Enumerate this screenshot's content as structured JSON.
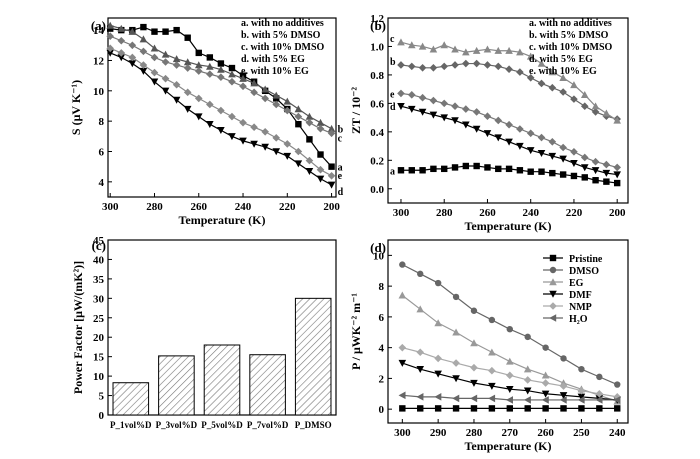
{
  "chart_data": [
    {
      "panel": "(a)",
      "type": "line",
      "xlabel": "Temperature (K)",
      "ylabel": "S (μV K⁻¹)",
      "xlim": [
        301,
        198
      ],
      "ylim": [
        3,
        14.8
      ],
      "xticks": [
        300,
        280,
        260,
        240,
        220,
        200
      ],
      "yticks": [
        4,
        6,
        8,
        10,
        12,
        14
      ],
      "legend": [
        "a. with no additives",
        "b. with 5% DMSO",
        "c. with 10% DMSO",
        "d. with 5% EG",
        "e. with 10% EG"
      ],
      "legend_position": "top-right",
      "series": [
        {
          "label": "a",
          "marker": "square",
          "color": "#000000",
          "x": [
            300,
            295,
            290,
            285,
            280,
            275,
            270,
            265,
            260,
            255,
            250,
            245,
            240,
            235,
            230,
            225,
            220,
            215,
            210,
            205,
            200
          ],
          "y": [
            14.1,
            14.0,
            14.0,
            14.2,
            13.9,
            13.9,
            14.0,
            13.5,
            12.5,
            12.2,
            11.8,
            11.5,
            11.0,
            10.6,
            10.0,
            9.5,
            8.8,
            7.8,
            6.8,
            5.8,
            5.0
          ]
        },
        {
          "label": "b",
          "marker": "triangle-up",
          "color": "#555555",
          "x": [
            300,
            295,
            290,
            285,
            280,
            275,
            270,
            265,
            260,
            255,
            250,
            245,
            240,
            235,
            230,
            225,
            220,
            215,
            210,
            205,
            200
          ],
          "y": [
            14.3,
            14.1,
            13.9,
            13.4,
            12.8,
            12.4,
            12.1,
            11.9,
            11.7,
            11.6,
            11.4,
            11.1,
            10.8,
            10.5,
            10.1,
            9.7,
            9.3,
            8.8,
            8.3,
            7.9,
            7.5
          ]
        },
        {
          "label": "c",
          "marker": "diamond",
          "color": "#777777",
          "x": [
            300,
            295,
            290,
            285,
            280,
            275,
            270,
            265,
            260,
            255,
            250,
            245,
            240,
            235,
            230,
            225,
            220,
            215,
            210,
            205,
            200
          ],
          "y": [
            13.6,
            13.3,
            13.0,
            12.6,
            12.2,
            11.9,
            11.7,
            11.5,
            11.3,
            11.1,
            10.9,
            10.6,
            10.3,
            9.9,
            9.5,
            9.1,
            8.7,
            8.3,
            7.9,
            7.5,
            7.2
          ]
        },
        {
          "label": "d",
          "marker": "triangle-down",
          "color": "#000000",
          "x": [
            300,
            295,
            290,
            285,
            280,
            275,
            270,
            265,
            260,
            255,
            250,
            245,
            240,
            235,
            230,
            225,
            220,
            215,
            210,
            205,
            200
          ],
          "y": [
            12.5,
            12.2,
            11.8,
            11.3,
            10.6,
            10.0,
            9.4,
            8.8,
            8.3,
            7.8,
            7.4,
            7.0,
            6.7,
            6.5,
            6.3,
            6.0,
            5.7,
            5.2,
            4.7,
            4.2,
            3.8
          ]
        },
        {
          "label": "e",
          "marker": "diamond",
          "color": "#888888",
          "x": [
            300,
            295,
            290,
            285,
            280,
            275,
            270,
            265,
            260,
            255,
            250,
            245,
            240,
            235,
            230,
            225,
            220,
            215,
            210,
            205,
            200
          ],
          "y": [
            12.8,
            12.5,
            12.2,
            11.7,
            11.2,
            10.8,
            10.4,
            9.9,
            9.5,
            9.1,
            8.7,
            8.3,
            7.9,
            7.6,
            7.3,
            6.9,
            6.5,
            6.0,
            5.4,
            4.8,
            4.4
          ]
        }
      ]
    },
    {
      "panel": "(b)",
      "type": "line",
      "xlabel": "Temperature (K)",
      "ylabel": "ZT / 10⁻²",
      "xlim": [
        306,
        195
      ],
      "ylim": [
        -0.1,
        1.2
      ],
      "xticks": [
        300,
        280,
        260,
        240,
        220,
        200
      ],
      "yticks": [
        0.0,
        0.2,
        0.4,
        0.6,
        0.8,
        1.0,
        1.2
      ],
      "legend": [
        "a. with no additives",
        "b. with 5% DMSO",
        "c. with 10% DMSO",
        "d. with 5% EG",
        "e. with 10% EG"
      ],
      "legend_position": "top-right",
      "series": [
        {
          "label": "a",
          "marker": "square",
          "color": "#000000",
          "x": [
            300,
            295,
            290,
            285,
            280,
            275,
            270,
            265,
            260,
            255,
            250,
            245,
            240,
            235,
            230,
            225,
            220,
            215,
            210,
            205,
            200
          ],
          "y": [
            0.13,
            0.13,
            0.13,
            0.14,
            0.14,
            0.15,
            0.16,
            0.16,
            0.15,
            0.14,
            0.14,
            0.13,
            0.12,
            0.12,
            0.11,
            0.1,
            0.09,
            0.08,
            0.06,
            0.05,
            0.04
          ]
        },
        {
          "label": "b",
          "marker": "diamond",
          "color": "#666666",
          "x": [
            300,
            295,
            290,
            285,
            280,
            275,
            270,
            265,
            260,
            255,
            250,
            245,
            240,
            235,
            230,
            225,
            220,
            215,
            210,
            205,
            200
          ],
          "y": [
            0.87,
            0.86,
            0.85,
            0.85,
            0.86,
            0.87,
            0.88,
            0.88,
            0.87,
            0.86,
            0.84,
            0.82,
            0.78,
            0.74,
            0.71,
            0.68,
            0.63,
            0.58,
            0.54,
            0.51,
            0.49
          ]
        },
        {
          "label": "c",
          "marker": "triangle-up",
          "color": "#888888",
          "x": [
            300,
            295,
            290,
            285,
            280,
            275,
            270,
            265,
            260,
            255,
            250,
            245,
            240,
            235,
            230,
            225,
            220,
            215,
            210,
            205,
            200
          ],
          "y": [
            1.03,
            1.01,
            1.0,
            0.98,
            1.01,
            0.98,
            0.96,
            0.97,
            0.98,
            0.97,
            0.97,
            0.96,
            0.93,
            0.88,
            0.82,
            0.78,
            0.73,
            0.66,
            0.58,
            0.53,
            0.48
          ]
        },
        {
          "label": "d",
          "marker": "triangle-down",
          "color": "#000000",
          "x": [
            300,
            295,
            290,
            285,
            280,
            275,
            270,
            265,
            260,
            255,
            250,
            245,
            240,
            235,
            230,
            225,
            220,
            215,
            210,
            205,
            200
          ],
          "y": [
            0.58,
            0.56,
            0.54,
            0.52,
            0.5,
            0.48,
            0.45,
            0.42,
            0.39,
            0.36,
            0.33,
            0.3,
            0.27,
            0.25,
            0.23,
            0.21,
            0.18,
            0.15,
            0.13,
            0.11,
            0.1
          ]
        },
        {
          "label": "e",
          "marker": "diamond",
          "color": "#777777",
          "x": [
            300,
            295,
            290,
            285,
            280,
            275,
            270,
            265,
            260,
            255,
            250,
            245,
            240,
            235,
            230,
            225,
            220,
            215,
            210,
            205,
            200
          ],
          "y": [
            0.67,
            0.66,
            0.64,
            0.62,
            0.6,
            0.58,
            0.56,
            0.54,
            0.51,
            0.48,
            0.45,
            0.42,
            0.39,
            0.36,
            0.33,
            0.29,
            0.26,
            0.22,
            0.19,
            0.17,
            0.15
          ]
        }
      ]
    },
    {
      "panel": "(c)",
      "type": "bar",
      "ylabel": "Power Factor [μW/(mK²)]",
      "ylim": [
        0,
        45
      ],
      "yticks": [
        0,
        5,
        10,
        15,
        20,
        25,
        30,
        35,
        40,
        45
      ],
      "categories": [
        "P_1vol%D",
        "P_3vol%D",
        "P_5vol%D",
        "P_7vol%D",
        "P_DMSO"
      ],
      "values": [
        8.3,
        15.2,
        18.0,
        15.5,
        30.0
      ]
    },
    {
      "panel": "(d)",
      "type": "line",
      "xlabel": "Temperature (K)",
      "ylabel": "P / μWK⁻² m⁻¹",
      "xlim": [
        304,
        237
      ],
      "ylim": [
        -0.9,
        11
      ],
      "xticks": [
        300,
        290,
        280,
        270,
        260,
        250,
        240
      ],
      "yticks": [
        0,
        2,
        4,
        6,
        8,
        10
      ],
      "legend": [
        "Pristine",
        "DMSO",
        "EG",
        "DMF",
        "NMP",
        "H₂O"
      ],
      "legend_position": "top-right",
      "series": [
        {
          "label": "Pristine",
          "marker": "square",
          "color": "#000000",
          "x": [
            300,
            295,
            290,
            285,
            280,
            275,
            270,
            265,
            260,
            255,
            250,
            245,
            240
          ],
          "y": [
            0.05,
            0.05,
            0.05,
            0.05,
            0.05,
            0.05,
            0.05,
            0.05,
            0.05,
            0.05,
            0.05,
            0.05,
            0.05
          ]
        },
        {
          "label": "DMSO",
          "marker": "circle",
          "color": "#666666",
          "x": [
            300,
            295,
            290,
            285,
            280,
            275,
            270,
            265,
            260,
            255,
            250,
            245,
            240
          ],
          "y": [
            9.4,
            8.8,
            8.2,
            7.3,
            6.4,
            5.8,
            5.2,
            4.7,
            4.0,
            3.3,
            2.6,
            2.1,
            1.6
          ]
        },
        {
          "label": "EG",
          "marker": "triangle-up",
          "color": "#999999",
          "x": [
            300,
            295,
            290,
            285,
            280,
            275,
            270,
            265,
            260,
            255,
            250,
            245,
            240
          ],
          "y": [
            7.4,
            6.5,
            5.6,
            5.0,
            4.3,
            3.7,
            3.1,
            2.6,
            2.2,
            1.7,
            1.3,
            0.9,
            0.5
          ]
        },
        {
          "label": "DMF",
          "marker": "triangle-down",
          "color": "#000000",
          "x": [
            300,
            295,
            290,
            285,
            280,
            275,
            270,
            265,
            260,
            255,
            250,
            245,
            240
          ],
          "y": [
            3.0,
            2.6,
            2.3,
            2.0,
            1.7,
            1.5,
            1.3,
            1.2,
            1.0,
            0.9,
            0.8,
            0.7,
            0.6
          ]
        },
        {
          "label": "NMP",
          "marker": "diamond",
          "color": "#aaaaaa",
          "x": [
            300,
            295,
            290,
            285,
            280,
            275,
            270,
            265,
            260,
            255,
            250,
            245,
            240
          ],
          "y": [
            4.0,
            3.7,
            3.3,
            3.0,
            2.7,
            2.5,
            2.2,
            1.9,
            1.7,
            1.5,
            1.2,
            1.0,
            0.8
          ]
        },
        {
          "label": "H₂O",
          "marker": "triangle-left",
          "color": "#666666",
          "x": [
            300,
            295,
            290,
            285,
            280,
            275,
            270,
            265,
            260,
            255,
            250,
            245,
            240
          ],
          "y": [
            0.9,
            0.8,
            0.8,
            0.7,
            0.7,
            0.7,
            0.6,
            0.6,
            0.6,
            0.6,
            0.6,
            0.6,
            0.6
          ]
        }
      ]
    }
  ]
}
